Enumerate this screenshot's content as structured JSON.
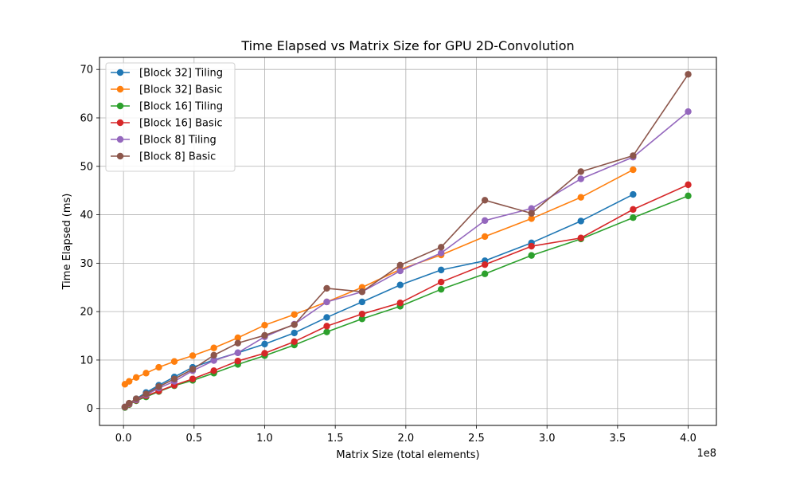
{
  "chart_data": {
    "type": "line",
    "title": "Time Elapsed vs Matrix Size for GPU 2D-Convolution",
    "xlabel": "Matrix Size (total elements)",
    "ylabel": "Time Elapsed (ms)",
    "x_offset_text": "1e8",
    "xlim": [
      -17000000,
      420000000
    ],
    "ylim": [
      -3.5,
      72.5
    ],
    "xticks": [
      0,
      50000000,
      100000000,
      150000000,
      200000000,
      250000000,
      300000000,
      350000000,
      400000000
    ],
    "xtick_labels": [
      "0.0",
      "0.5",
      "1.0",
      "1.5",
      "2.0",
      "2.5",
      "3.0",
      "3.5",
      "4.0"
    ],
    "yticks": [
      0,
      10,
      20,
      30,
      40,
      50,
      60,
      70
    ],
    "ytick_labels": [
      "0",
      "10",
      "20",
      "30",
      "40",
      "50",
      "60",
      "70"
    ],
    "grid": true,
    "legend_position": "top-left",
    "series": [
      {
        "name": "[Block 32] Tiling",
        "color": "#1f77b4",
        "x": [
          1000000,
          4000000,
          9000000,
          16000000,
          25000000,
          36000000,
          49000000,
          64000000,
          81000000,
          100000000,
          121000000,
          144000000,
          169000000,
          196000000,
          225000000,
          256000000,
          289000000,
          324000000,
          361000000
        ],
        "y": [
          0.3,
          1.0,
          2.0,
          3.3,
          4.8,
          6.5,
          8.5,
          10.0,
          11.5,
          13.3,
          15.6,
          18.8,
          22.0,
          25.5,
          28.6,
          30.5,
          34.2,
          38.7,
          44.2
        ]
      },
      {
        "name": "[Block 32] Basic",
        "color": "#ff7f0e",
        "x": [
          1000000,
          4000000,
          9000000,
          16000000,
          25000000,
          36000000,
          49000000,
          64000000,
          81000000,
          100000000,
          121000000,
          144000000,
          169000000,
          196000000,
          225000000,
          256000000,
          289000000,
          324000000,
          361000000
        ],
        "y": [
          5.0,
          5.6,
          6.4,
          7.3,
          8.5,
          9.7,
          10.9,
          12.5,
          14.6,
          17.2,
          19.4,
          22.0,
          25.0,
          28.7,
          31.7,
          35.5,
          39.2,
          43.6,
          49.3
        ]
      },
      {
        "name": "[Block 16] Tiling",
        "color": "#2ca02c",
        "x": [
          1000000,
          4000000,
          9000000,
          16000000,
          25000000,
          36000000,
          49000000,
          64000000,
          81000000,
          100000000,
          121000000,
          144000000,
          169000000,
          196000000,
          225000000,
          256000000,
          289000000,
          324000000,
          361000000,
          400000000
        ],
        "y": [
          0.2,
          0.8,
          1.6,
          2.4,
          3.5,
          4.7,
          5.8,
          7.3,
          9.1,
          10.9,
          13.1,
          15.8,
          18.5,
          21.1,
          24.6,
          27.8,
          31.6,
          35.0,
          39.4,
          43.9
        ]
      },
      {
        "name": "[Block 16] Basic",
        "color": "#d62728",
        "x": [
          1000000,
          4000000,
          9000000,
          16000000,
          25000000,
          36000000,
          49000000,
          64000000,
          81000000,
          100000000,
          121000000,
          144000000,
          169000000,
          196000000,
          225000000,
          256000000,
          289000000,
          324000000,
          361000000,
          400000000
        ],
        "y": [
          0.3,
          0.9,
          1.7,
          2.6,
          3.6,
          4.8,
          6.1,
          7.8,
          9.8,
          11.4,
          13.8,
          17.0,
          19.5,
          21.8,
          26.1,
          29.7,
          33.5,
          35.2,
          41.1,
          46.2
        ]
      },
      {
        "name": "[Block 8] Tiling",
        "color": "#9467bd",
        "x": [
          1000000,
          4000000,
          9000000,
          16000000,
          25000000,
          36000000,
          49000000,
          64000000,
          81000000,
          100000000,
          121000000,
          144000000,
          169000000,
          196000000,
          225000000,
          256000000,
          289000000,
          324000000,
          361000000,
          400000000
        ],
        "y": [
          0.3,
          1.0,
          1.8,
          2.8,
          4.2,
          5.6,
          7.8,
          9.9,
          11.5,
          14.8,
          17.4,
          22.0,
          24.1,
          28.4,
          32.1,
          38.8,
          41.3,
          47.4,
          51.9,
          61.3
        ]
      },
      {
        "name": "[Block 8] Basic",
        "color": "#8c564b",
        "x": [
          1000000,
          4000000,
          9000000,
          16000000,
          25000000,
          36000000,
          49000000,
          64000000,
          81000000,
          100000000,
          121000000,
          144000000,
          169000000,
          196000000,
          225000000,
          256000000,
          289000000,
          324000000,
          361000000,
          400000000
        ],
        "y": [
          0.3,
          1.1,
          2.0,
          3.0,
          4.5,
          6.1,
          8.1,
          11.0,
          13.5,
          15.1,
          17.3,
          24.8,
          24.1,
          29.6,
          33.3,
          43.0,
          40.3,
          48.9,
          52.2,
          69.0
        ]
      }
    ]
  }
}
